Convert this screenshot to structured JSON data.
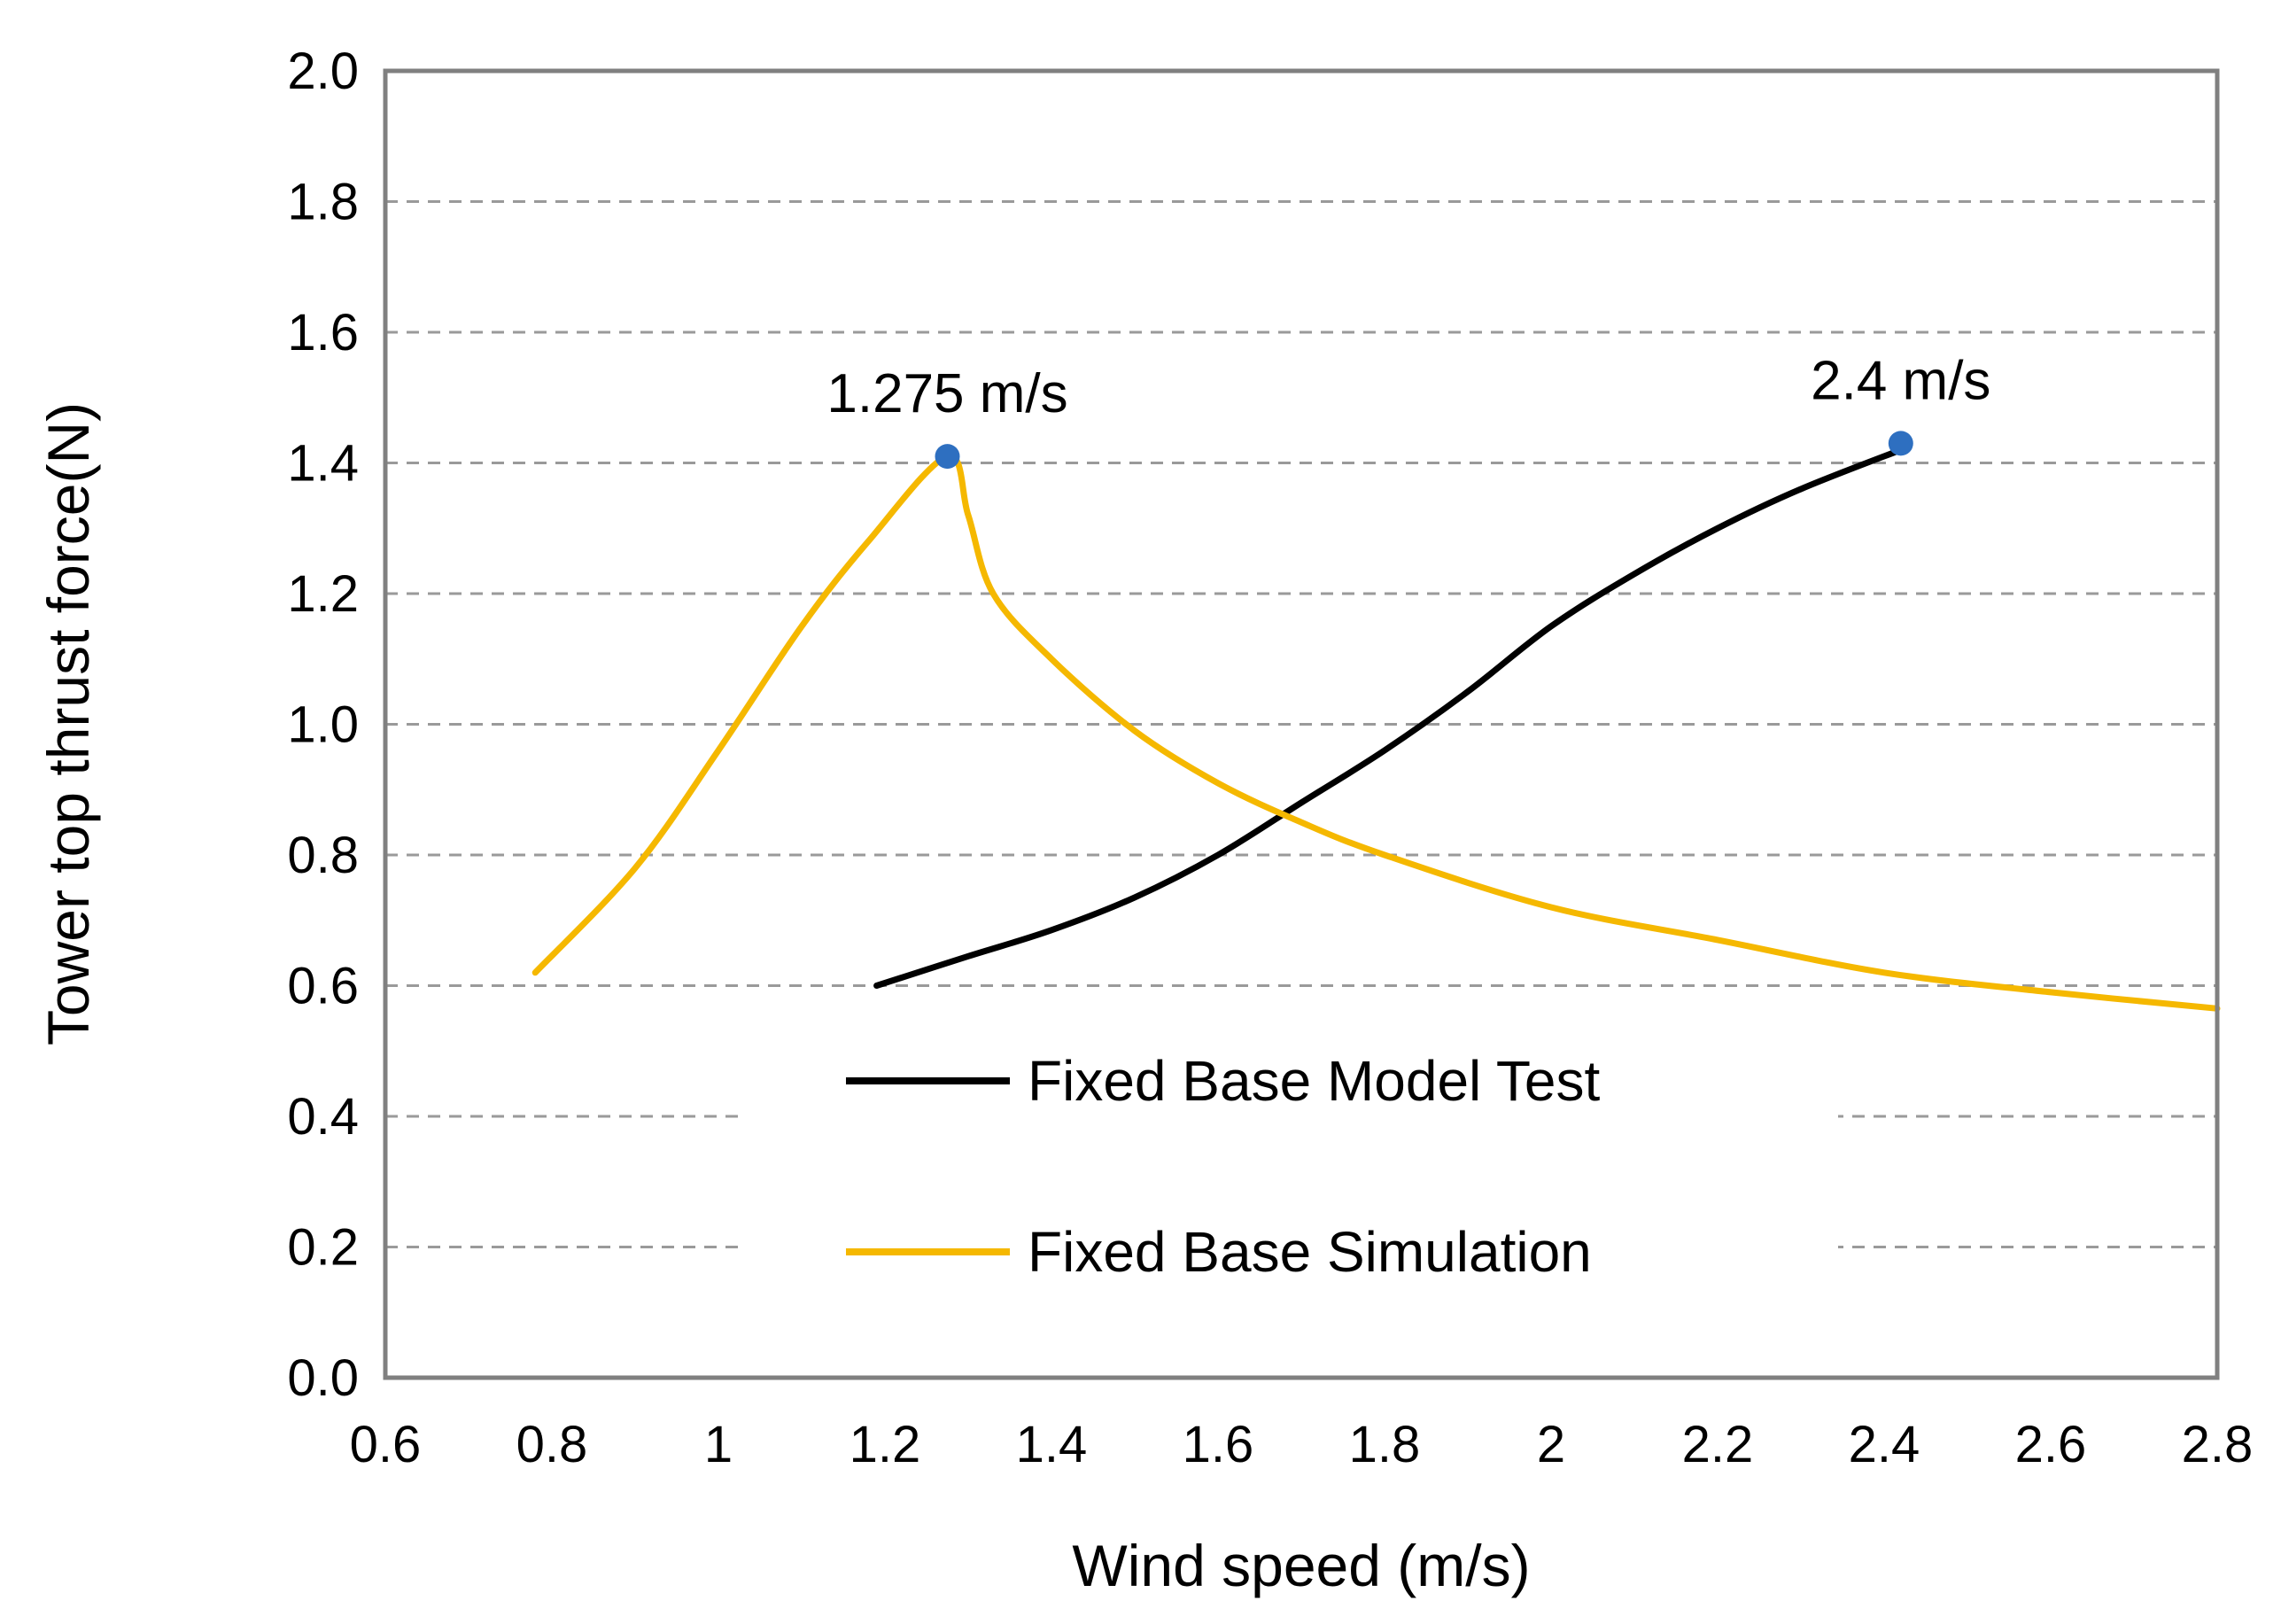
{
  "chart_data": {
    "type": "line",
    "title": "",
    "xlabel": "Wind speed (m/s)",
    "ylabel": "Tower top thrust force(N)",
    "xlim": [
      0.6,
      2.8
    ],
    "ylim": [
      0.0,
      2.0
    ],
    "x_ticks": [
      {
        "v": 0.6,
        "label": "0.6"
      },
      {
        "v": 0.8,
        "label": "0.8"
      },
      {
        "v": 1.0,
        "label": "1"
      },
      {
        "v": 1.2,
        "label": "1.2"
      },
      {
        "v": 1.4,
        "label": "1.4"
      },
      {
        "v": 1.6,
        "label": "1.6"
      },
      {
        "v": 1.8,
        "label": "1.8"
      },
      {
        "v": 2.0,
        "label": "2"
      },
      {
        "v": 2.2,
        "label": "2.2"
      },
      {
        "v": 2.4,
        "label": "2.4"
      },
      {
        "v": 2.6,
        "label": "2.6"
      },
      {
        "v": 2.8,
        "label": "2.8"
      }
    ],
    "y_ticks": [
      {
        "v": 0.0,
        "label": "0.0"
      },
      {
        "v": 0.2,
        "label": "0.2"
      },
      {
        "v": 0.4,
        "label": "0.4"
      },
      {
        "v": 0.6,
        "label": "0.6"
      },
      {
        "v": 0.8,
        "label": "0.8"
      },
      {
        "v": 1.0,
        "label": "1.0"
      },
      {
        "v": 1.2,
        "label": "1.2"
      },
      {
        "v": 1.4,
        "label": "1.4"
      },
      {
        "v": 1.6,
        "label": "1.6"
      },
      {
        "v": 1.8,
        "label": "1.8"
      },
      {
        "v": 2.0,
        "label": "2.0"
      }
    ],
    "grid": "horizontal dashed",
    "legend_position": "lower-center",
    "series": [
      {
        "name": "Fixed Base Model Test",
        "color": "#000000",
        "x": [
          1.19,
          1.3,
          1.4,
          1.5,
          1.6,
          1.7,
          1.8,
          1.9,
          2.0,
          2.1,
          2.2,
          2.3,
          2.42
        ],
        "y": [
          0.6,
          0.645,
          0.685,
          0.735,
          0.8,
          0.88,
          0.96,
          1.05,
          1.15,
          1.23,
          1.3,
          1.36,
          1.42
        ]
      },
      {
        "name": "Fixed Base Simulation",
        "color": "#F5B800",
        "x": [
          0.78,
          0.9,
          1.0,
          1.1,
          1.18,
          1.275,
          1.3,
          1.33,
          1.4,
          1.5,
          1.6,
          1.7,
          1.8,
          2.0,
          2.2,
          2.4,
          2.6,
          2.8
        ],
        "y": [
          0.62,
          0.78,
          0.96,
          1.15,
          1.28,
          1.41,
          1.32,
          1.2,
          1.1,
          0.99,
          0.91,
          0.85,
          0.8,
          0.72,
          0.67,
          0.62,
          0.59,
          0.565
        ]
      }
    ],
    "markers": [
      {
        "x": 1.275,
        "y": 1.41,
        "label": "1.275 m/s",
        "color": "#2E6FC0"
      },
      {
        "x": 2.42,
        "y": 1.43,
        "label": "2.4 m/s",
        "color": "#2E6FC0"
      }
    ]
  }
}
